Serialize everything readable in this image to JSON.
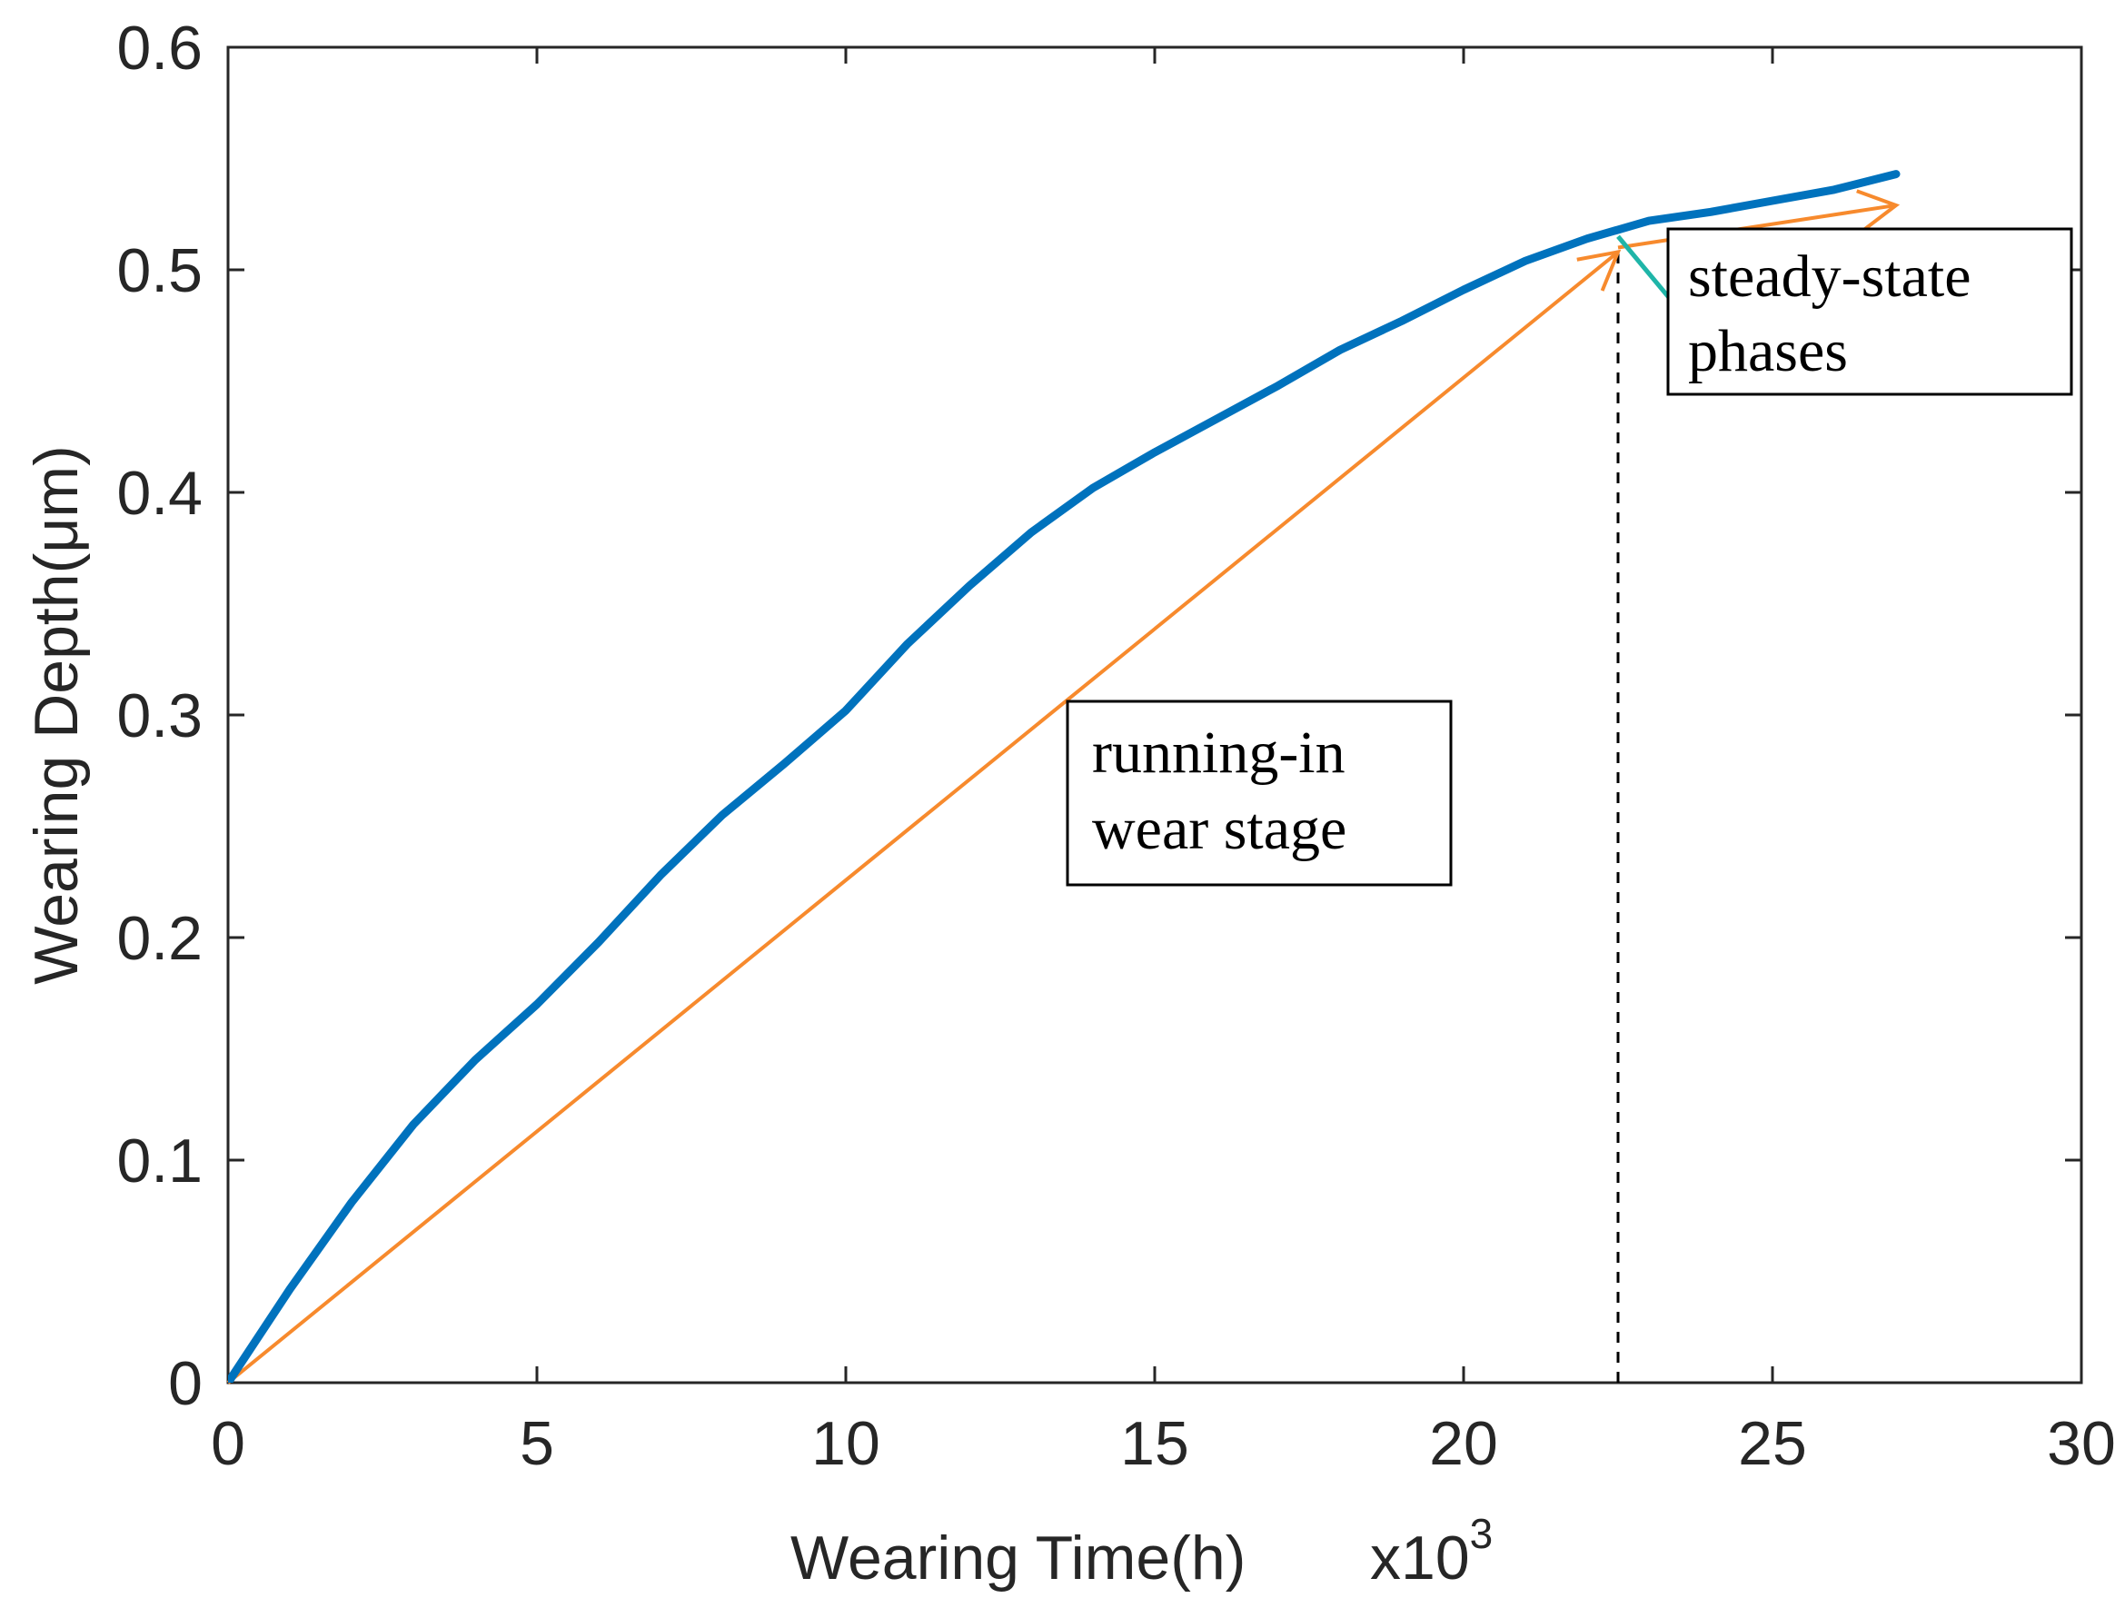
{
  "colors": {
    "curve": "#0072BD",
    "arrow": "#F78A2D",
    "leader": "#1FB5A8",
    "axis": "#262626",
    "box_border": "#000000"
  },
  "chart_data": {
    "type": "line",
    "title": "",
    "xlabel": "Wearing Time(h)",
    "x_multiplier_base": "x10",
    "x_multiplier_exponent": "3",
    "ylabel": "Wearing Depth(μm)",
    "xlim": [
      0,
      30
    ],
    "ylim": [
      0,
      0.6
    ],
    "x_ticks": [
      0,
      5,
      10,
      15,
      20,
      25,
      30
    ],
    "x_tick_labels": [
      "0",
      "5",
      "10",
      "15",
      "20",
      "25",
      "30"
    ],
    "y_ticks": [
      0,
      0.1,
      0.2,
      0.3,
      0.4,
      0.5,
      0.6
    ],
    "y_tick_labels": [
      "0",
      "0.1",
      "0.2",
      "0.3",
      "0.4",
      "0.5",
      "0.6"
    ],
    "grid": false,
    "series": [
      {
        "name": "wearing depth",
        "x": [
          0,
          1,
          2,
          3,
          4,
          5,
          6,
          7,
          8,
          9,
          10,
          11,
          12,
          13,
          14,
          15,
          16,
          17,
          18,
          19,
          20,
          21,
          22,
          23,
          24,
          25,
          26,
          27
        ],
        "y": [
          0,
          0.042,
          0.081,
          0.116,
          0.145,
          0.17,
          0.198,
          0.228,
          0.255,
          0.278,
          0.302,
          0.332,
          0.358,
          0.382,
          0.402,
          0.418,
          0.433,
          0.448,
          0.464,
          0.477,
          0.491,
          0.504,
          0.514,
          0.522,
          0.526,
          0.531,
          0.536,
          0.543
        ]
      }
    ],
    "arrows": [
      {
        "name": "running-in arrow",
        "from": [
          0,
          0
        ],
        "to": [
          22.5,
          0.508
        ]
      },
      {
        "name": "steady-state arrow",
        "from": [
          22.5,
          0.51
        ],
        "to": [
          27.0,
          0.529
        ]
      }
    ],
    "reference_line": {
      "x": 22.5,
      "y_from": 0,
      "y_to": 0.51,
      "style": "dashed"
    },
    "leader_line": {
      "from": [
        22.5,
        0.515
      ],
      "to": [
        23.4,
        0.485
      ]
    },
    "annotations": [
      {
        "lines": [
          "running-in",
          "wear stage"
        ]
      },
      {
        "lines": [
          "steady-state",
          "phases"
        ]
      }
    ]
  }
}
